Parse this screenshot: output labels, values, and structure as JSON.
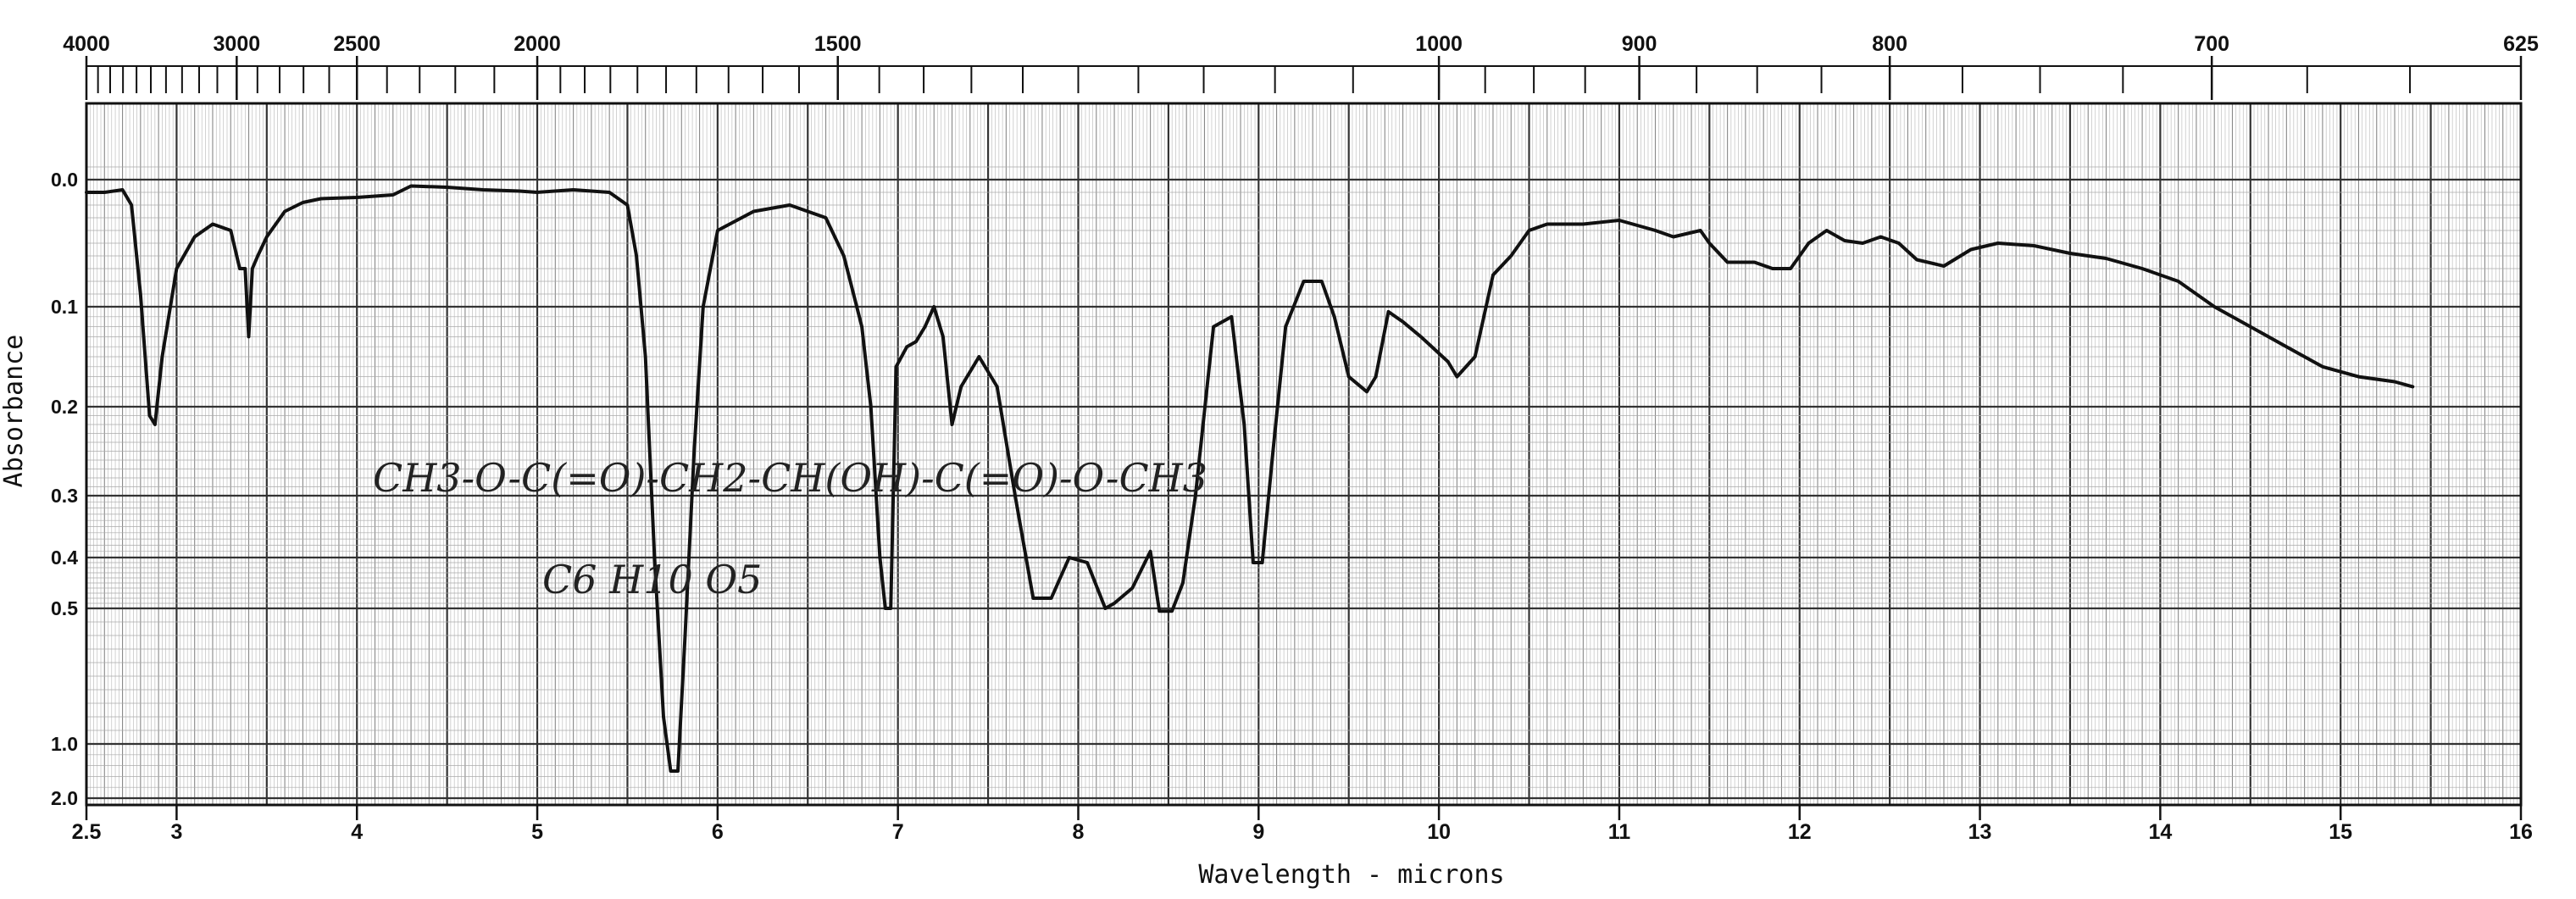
{
  "chart_data": {
    "type": "line",
    "title": "",
    "xlabel": "Wavelength - microns",
    "ylabel": "Absorbance",
    "x_range": [
      2.5,
      16
    ],
    "bottom_ticks": [
      "2.5",
      "3",
      "4",
      "5",
      "6",
      "7",
      "8",
      "9",
      "10",
      "11",
      "12",
      "13",
      "14",
      "15",
      "16"
    ],
    "top_ticks": [
      "4000",
      "3000",
      "2500",
      "2000",
      "1500",
      "1000",
      "900",
      "800",
      "700",
      "625"
    ],
    "y_ticks": [
      "0.0",
      "0.1",
      "0.2",
      "0.3",
      "0.4",
      "0.5",
      "1.0",
      "2.0"
    ],
    "grid": true,
    "annotations": [
      "CH3-O-C(=O)-CH2-CH(OH)-C(=O)-O-CH3",
      "C6 H10 O5"
    ],
    "series": [
      {
        "x": [
          2.5,
          2.6,
          2.7,
          2.75,
          2.8,
          2.85,
          2.88,
          2.92,
          3.0,
          3.1,
          3.2,
          3.3,
          3.35,
          3.38,
          3.4,
          3.42,
          3.45,
          3.5,
          3.6,
          3.7,
          3.8,
          4.0,
          4.2,
          4.3,
          4.5,
          4.7,
          4.9,
          5.0,
          5.2,
          5.4,
          5.5,
          5.55,
          5.6,
          5.65,
          5.7,
          5.74,
          5.78,
          5.82,
          5.87,
          5.92,
          6.0,
          6.2,
          6.4,
          6.6,
          6.7,
          6.8,
          6.85,
          6.9,
          6.93,
          6.96,
          6.99,
          7.05,
          7.1,
          7.15,
          7.2,
          7.25,
          7.3,
          7.35,
          7.45,
          7.55,
          7.65,
          7.75,
          7.85,
          7.95,
          8.05,
          8.15,
          8.2,
          8.3,
          8.4,
          8.45,
          8.52,
          8.58,
          8.65,
          8.75,
          8.85,
          8.92,
          8.97,
          9.02,
          9.08,
          9.15,
          9.25,
          9.35,
          9.42,
          9.5,
          9.6,
          9.65,
          9.72,
          9.8,
          9.9,
          10.05,
          10.1,
          10.2,
          10.3,
          10.4,
          10.5,
          10.6,
          10.8,
          11.0,
          11.2,
          11.3,
          11.45,
          11.5,
          11.6,
          11.75,
          11.85,
          11.95,
          12.05,
          12.15,
          12.25,
          12.35,
          12.45,
          12.55,
          12.65,
          12.8,
          12.95,
          13.1,
          13.3,
          13.5,
          13.7,
          13.9,
          14.1,
          14.3,
          14.5,
          14.7,
          14.9,
          15.1,
          15.3,
          15.4
        ],
        "y": [
          0.01,
          0.01,
          0.008,
          0.02,
          0.09,
          0.21,
          0.22,
          0.15,
          0.07,
          0.045,
          0.035,
          0.04,
          0.07,
          0.07,
          0.13,
          0.07,
          0.06,
          0.045,
          0.025,
          0.018,
          0.015,
          0.014,
          0.012,
          0.005,
          0.006,
          0.008,
          0.009,
          0.01,
          0.008,
          0.01,
          0.02,
          0.06,
          0.15,
          0.4,
          0.9,
          1.5,
          1.5,
          0.6,
          0.25,
          0.1,
          0.04,
          0.025,
          0.02,
          0.03,
          0.06,
          0.12,
          0.2,
          0.4,
          0.5,
          0.5,
          0.16,
          0.14,
          0.135,
          0.12,
          0.1,
          0.13,
          0.22,
          0.18,
          0.15,
          0.18,
          0.3,
          0.48,
          0.48,
          0.4,
          0.41,
          0.5,
          0.49,
          0.46,
          0.39,
          0.51,
          0.51,
          0.45,
          0.3,
          0.12,
          0.11,
          0.22,
          0.41,
          0.41,
          0.25,
          0.12,
          0.08,
          0.08,
          0.11,
          0.17,
          0.185,
          0.17,
          0.105,
          0.115,
          0.13,
          0.155,
          0.17,
          0.15,
          0.075,
          0.06,
          0.04,
          0.035,
          0.035,
          0.032,
          0.04,
          0.045,
          0.04,
          0.05,
          0.065,
          0.065,
          0.07,
          0.07,
          0.05,
          0.04,
          0.048,
          0.05,
          0.045,
          0.05,
          0.063,
          0.068,
          0.055,
          0.05,
          0.052,
          0.058,
          0.062,
          0.07,
          0.08,
          0.1,
          0.12,
          0.14,
          0.16,
          0.17,
          0.175,
          0.18
        ]
      }
    ]
  }
}
